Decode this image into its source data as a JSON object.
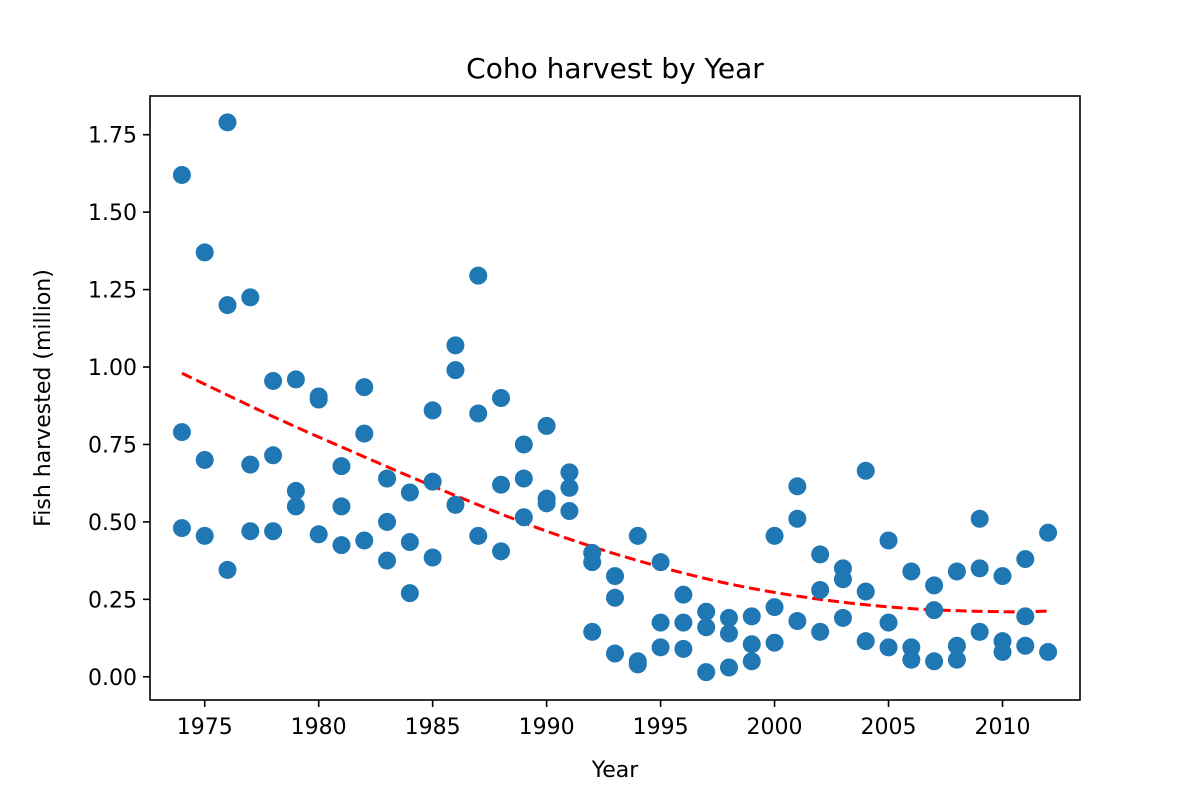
{
  "chart_data": {
    "type": "scatter",
    "title": "Coho harvest by Year",
    "xlabel": "Year",
    "ylabel": "Fish harvested (million)",
    "xlim": [
      1972.6,
      2013.4
    ],
    "ylim": [
      -0.075,
      1.875
    ],
    "xticks": [
      1975,
      1980,
      1985,
      1990,
      1995,
      2000,
      2005,
      2010
    ],
    "yticks": [
      0.0,
      0.25,
      0.5,
      0.75,
      1.0,
      1.25,
      1.5,
      1.75
    ],
    "ytick_labels": [
      "0.00",
      "0.25",
      "0.50",
      "0.75",
      "1.00",
      "1.25",
      "1.50",
      "1.75"
    ],
    "grid": false,
    "colors": {
      "points": "#1f77b4",
      "trend": "#ff0000"
    },
    "series": [
      {
        "kind": "points",
        "x": [
          1974,
          1974,
          1974,
          1975,
          1975,
          1975,
          1976,
          1976,
          1976,
          1977,
          1977,
          1977,
          1978,
          1978,
          1978,
          1979,
          1979,
          1979,
          1980,
          1980,
          1980,
          1981,
          1981,
          1981,
          1982,
          1982,
          1982,
          1983,
          1983,
          1983,
          1984,
          1984,
          1984,
          1985,
          1985,
          1985,
          1986,
          1986,
          1986,
          1987,
          1987,
          1987,
          1988,
          1988,
          1988,
          1989,
          1989,
          1989,
          1990,
          1990,
          1990,
          1991,
          1991,
          1991,
          1992,
          1992,
          1992,
          1993,
          1993,
          1993,
          1994,
          1994,
          1994,
          1995,
          1995,
          1995,
          1996,
          1996,
          1996,
          1997,
          1997,
          1997,
          1998,
          1998,
          1998,
          1999,
          1999,
          1999,
          2000,
          2000,
          2000,
          2001,
          2001,
          2001,
          2002,
          2002,
          2002,
          2003,
          2003,
          2003,
          2004,
          2004,
          2004,
          2005,
          2005,
          2005,
          2006,
          2006,
          2006,
          2007,
          2007,
          2007,
          2008,
          2008,
          2008,
          2009,
          2009,
          2009,
          2010,
          2010,
          2010,
          2011,
          2011,
          2011,
          2012,
          2012
        ],
        "y": [
          1.62,
          0.79,
          0.48,
          1.37,
          0.7,
          0.455,
          1.79,
          1.2,
          0.345,
          1.225,
          0.685,
          0.47,
          0.955,
          0.715,
          0.47,
          0.96,
          0.6,
          0.55,
          0.905,
          0.895,
          0.46,
          0.68,
          0.55,
          0.425,
          0.935,
          0.785,
          0.44,
          0.64,
          0.5,
          0.375,
          0.595,
          0.435,
          0.27,
          0.86,
          0.63,
          0.385,
          1.07,
          0.99,
          0.555,
          1.295,
          0.85,
          0.455,
          0.9,
          0.62,
          0.405,
          0.75,
          0.64,
          0.515,
          0.81,
          0.575,
          0.56,
          0.66,
          0.61,
          0.535,
          0.4,
          0.37,
          0.145,
          0.325,
          0.255,
          0.075,
          0.455,
          0.05,
          0.04,
          0.37,
          0.175,
          0.095,
          0.265,
          0.175,
          0.09,
          0.21,
          0.16,
          0.015,
          0.19,
          0.14,
          0.03,
          0.195,
          0.105,
          0.05,
          0.455,
          0.225,
          0.11,
          0.615,
          0.51,
          0.18,
          0.395,
          0.28,
          0.145,
          0.35,
          0.315,
          0.19,
          0.665,
          0.275,
          0.115,
          0.44,
          0.175,
          0.095,
          0.34,
          0.095,
          0.055,
          0.295,
          0.215,
          0.05,
          0.34,
          0.1,
          0.055,
          0.51,
          0.35,
          0.145,
          0.325,
          0.115,
          0.08,
          0.38,
          0.195,
          0.1,
          0.465,
          0.08
        ]
      },
      {
        "kind": "trend",
        "style": "dashed",
        "x": [
          1974,
          1978,
          1982,
          1986,
          1990,
          1994,
          1998,
          2002,
          2006,
          2010,
          2012
        ],
        "y": [
          0.98,
          0.84,
          0.71,
          0.585,
          0.47,
          0.375,
          0.3,
          0.25,
          0.22,
          0.21,
          0.212
        ]
      }
    ]
  }
}
